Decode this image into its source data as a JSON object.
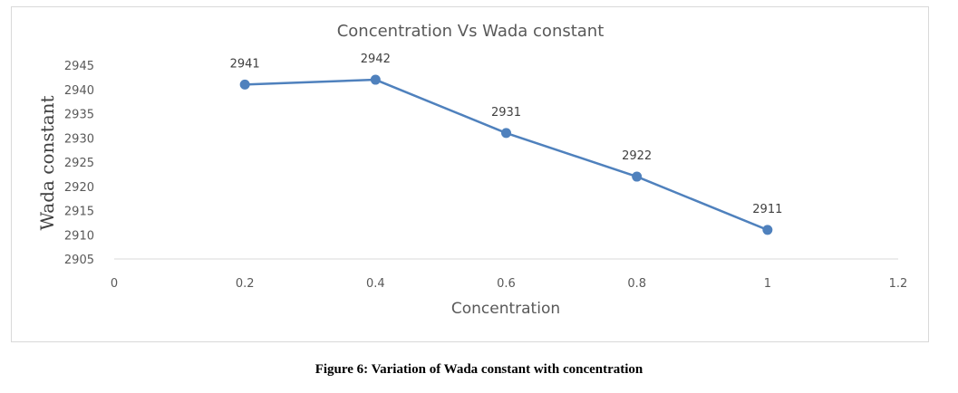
{
  "chart_data": {
    "type": "line",
    "title": "Concentration  Vs Wada constant",
    "xlabel": "Concentration",
    "ylabel": "Wada constant",
    "x": [
      0.2,
      0.4,
      0.6,
      0.8,
      1
    ],
    "series": [
      {
        "values": [
          2941,
          2942,
          2931,
          2922,
          2911
        ],
        "data_labels": [
          "2941",
          "2942",
          "2931",
          "2922",
          "2911"
        ],
        "color": "#4f81bd"
      }
    ],
    "xlim": [
      0,
      1.2
    ],
    "ylim": [
      2905,
      2945
    ],
    "x_ticks": [
      "0",
      "0.2",
      "0.4",
      "0.6",
      "0.8",
      "1",
      "1.2"
    ],
    "y_ticks": [
      "2905",
      "2910",
      "2915",
      "2920",
      "2925",
      "2930",
      "2935",
      "2940",
      "2945"
    ],
    "grid": false
  },
  "caption": "Figure 6: Variation of Wada constant with concentration"
}
